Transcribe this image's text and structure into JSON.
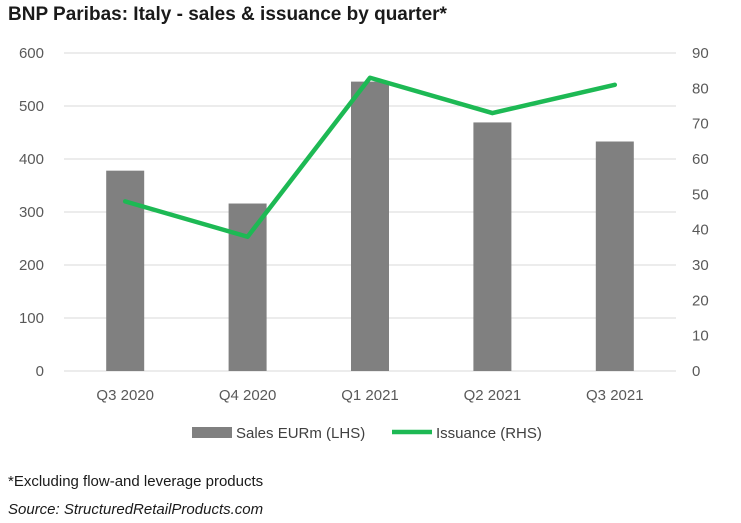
{
  "chart_data": {
    "type": "bar",
    "title": "BNP Paribas: Italy - sales & issuance by quarter*",
    "categories": [
      "Q3 2020",
      "Q4 2020",
      "Q1 2021",
      "Q2 2021",
      "Q3 2021"
    ],
    "series": [
      {
        "name": "Sales EURm (LHS)",
        "type": "bar",
        "axis": "left",
        "color": "#808080",
        "values": [
          378,
          316,
          546,
          469,
          433
        ]
      },
      {
        "name": "Issuance (RHS)",
        "type": "line",
        "axis": "right",
        "color": "#1db954",
        "values": [
          48,
          38,
          83,
          73,
          81
        ]
      }
    ],
    "ylim_left": [
      0,
      600
    ],
    "yticks_left": [
      0,
      100,
      200,
      300,
      400,
      500,
      600
    ],
    "ylim_right": [
      0,
      90
    ],
    "yticks_right": [
      0,
      10,
      20,
      30,
      40,
      50,
      60,
      70,
      80,
      90
    ],
    "legend": "bottom",
    "grid": true
  },
  "footnote": "*Excluding flow-and leverage products",
  "source": "Source: StructuredRetailProducts.com"
}
